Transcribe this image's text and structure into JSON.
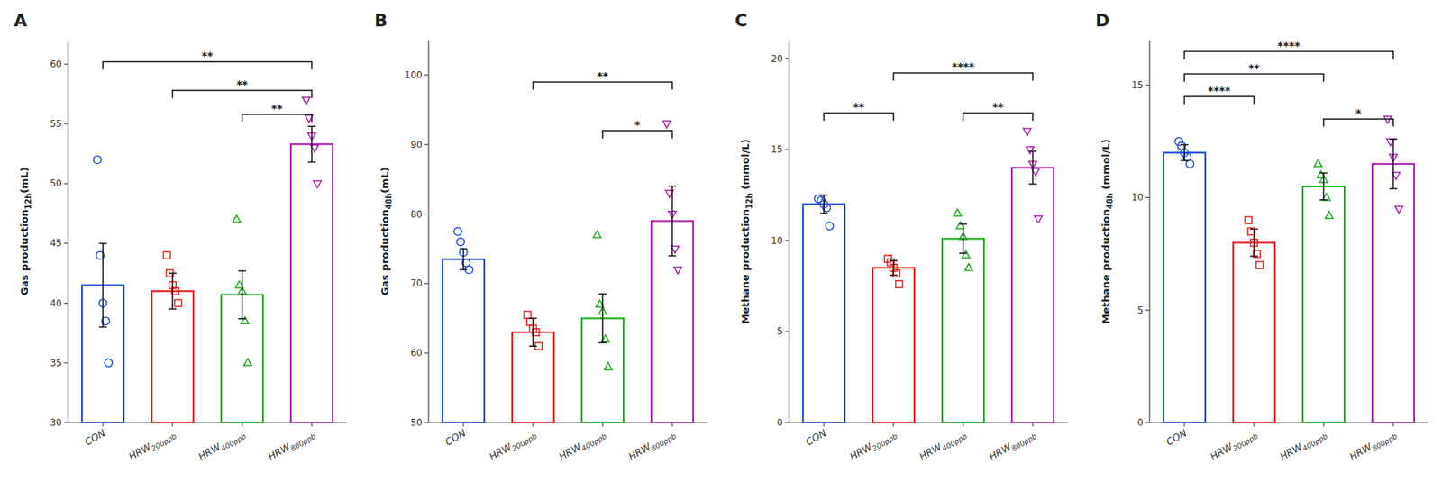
{
  "chart_data": [
    {
      "type": "bar",
      "title": "A",
      "ylabel": "Gas production12h(mL)",
      "categories": [
        "CON",
        "HRW200ppb",
        "HRW400ppb",
        "HRW800ppb"
      ],
      "colors": [
        "#1F4FD8",
        "#E82020",
        "#1AAF1A",
        "#AA22AA"
      ],
      "values": [
        41.5,
        41.0,
        40.7,
        53.3
      ],
      "errors": [
        3.5,
        1.5,
        2.0,
        1.5
      ],
      "points": [
        [
          52.0,
          44.0,
          40.0,
          38.5,
          35.0
        ],
        [
          44.0,
          42.5,
          41.5,
          41.0,
          40.0
        ],
        [
          47.0,
          41.5,
          41.0,
          38.5,
          35.0
        ],
        [
          57.0,
          55.5,
          54.0,
          53.0,
          50.0
        ]
      ],
      "ylim": [
        30,
        62
      ],
      "yticks": [
        30,
        35,
        40,
        45,
        50,
        55,
        60
      ],
      "annotations": [
        {
          "x1": "CON",
          "x2": "HRW800ppb",
          "y": 60.2,
          "label": "**"
        },
        {
          "x1": "HRW200ppb",
          "x2": "HRW800ppb",
          "y": 57.8,
          "label": "**"
        },
        {
          "x1": "HRW400ppb",
          "x2": "HRW800ppb",
          "y": 55.8,
          "label": "**"
        }
      ]
    },
    {
      "type": "bar",
      "title": "B",
      "ylabel": "Gas production48h(mL)",
      "categories": [
        "CON",
        "HRW200ppb",
        "HRW400ppb",
        "HRW800ppb"
      ],
      "colors": [
        "#1F4FD8",
        "#E82020",
        "#1AAF1A",
        "#AA22AA"
      ],
      "values": [
        73.5,
        63.0,
        65.0,
        79.0
      ],
      "errors": [
        1.5,
        2.0,
        3.5,
        5.0
      ],
      "points": [
        [
          77.5,
          76.0,
          74.5,
          73.0,
          72.0
        ],
        [
          65.5,
          64.5,
          63.5,
          63.0,
          61.0
        ],
        [
          77.0,
          67.0,
          66.0,
          62.0,
          58.0
        ],
        [
          93.0,
          83.0,
          80.0,
          75.0,
          72.0
        ]
      ],
      "ylim": [
        50,
        105
      ],
      "yticks": [
        50,
        60,
        70,
        80,
        90,
        100
      ],
      "annotations": [
        {
          "x1": "HRW200ppb",
          "x2": "HRW800ppb",
          "y": 99.0,
          "label": "**"
        },
        {
          "x1": "HRW400ppb",
          "x2": "HRW800ppb",
          "y": 92.0,
          "label": "*"
        }
      ]
    },
    {
      "type": "bar",
      "title": "C",
      "ylabel": "Methane production12h (mmol/L)",
      "categories": [
        "CON",
        "HRW200ppb",
        "HRW400ppb",
        "HRW800ppb"
      ],
      "colors": [
        "#1F4FD8",
        "#E82020",
        "#1AAF1A",
        "#AA22AA"
      ],
      "values": [
        12.0,
        8.5,
        10.1,
        14.0
      ],
      "errors": [
        0.5,
        0.4,
        0.8,
        0.9
      ],
      "points": [
        [
          12.3,
          12.2,
          12.0,
          11.8,
          10.8
        ],
        [
          9.0,
          8.8,
          8.5,
          8.2,
          7.6
        ],
        [
          11.5,
          10.8,
          10.2,
          9.2,
          8.5
        ],
        [
          16.0,
          15.0,
          14.2,
          13.8,
          11.2
        ]
      ],
      "ylim": [
        0,
        21
      ],
      "yticks": [
        0,
        5,
        10,
        15,
        20
      ],
      "annotations": [
        {
          "x1": "CON",
          "x2": "HRW200ppb",
          "y": 17.0,
          "label": "**"
        },
        {
          "x1": "HRW400ppb",
          "x2": "HRW800ppb",
          "y": 17.0,
          "label": "**"
        },
        {
          "x1": "HRW200ppb",
          "x2": "HRW800ppb",
          "y": 19.2,
          "label": "****"
        }
      ]
    },
    {
      "type": "bar",
      "title": "D",
      "ylabel": "Methane production48h (mmol/L)",
      "categories": [
        "CON",
        "HRW200ppb",
        "HRW400ppb",
        "HRW800ppb"
      ],
      "colors": [
        "#1F4FD8",
        "#E82020",
        "#1AAF1A",
        "#AA22AA"
      ],
      "values": [
        12.0,
        8.0,
        10.5,
        11.5
      ],
      "errors": [
        0.35,
        0.6,
        0.6,
        1.1
      ],
      "points": [
        [
          12.5,
          12.3,
          12.0,
          11.8,
          11.5
        ],
        [
          9.0,
          8.5,
          8.0,
          7.5,
          7.0
        ],
        [
          11.5,
          11.0,
          10.8,
          10.0,
          9.2
        ],
        [
          13.5,
          12.5,
          11.8,
          11.0,
          9.5
        ]
      ],
      "ylim": [
        0,
        17
      ],
      "yticks": [
        0,
        5,
        10,
        15
      ],
      "annotations": [
        {
          "x1": "CON",
          "x2": "HRW200ppb",
          "y": 14.5,
          "label": "****"
        },
        {
          "x1": "CON",
          "x2": "HRW400ppb",
          "y": 15.5,
          "label": "**"
        },
        {
          "x1": "CON",
          "x2": "HRW800ppb",
          "y": 16.5,
          "label": "****"
        },
        {
          "x1": "HRW400ppb",
          "x2": "HRW800ppb",
          "y": 13.5,
          "label": "*"
        }
      ]
    }
  ]
}
